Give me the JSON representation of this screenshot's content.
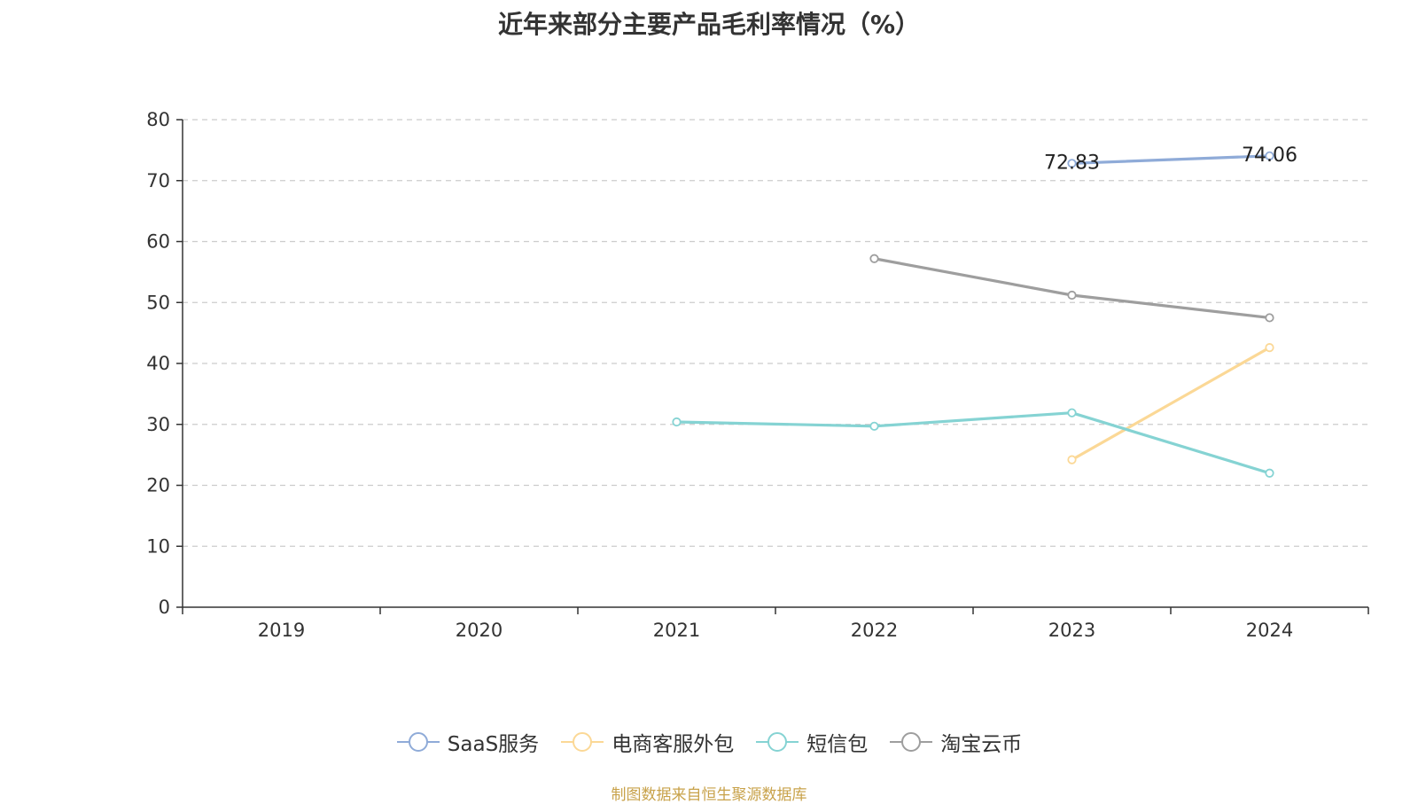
{
  "chart_data": {
    "type": "line",
    "title": "近年来部分主要产品毛利率情况（%）",
    "xlabel": "",
    "ylabel": "",
    "categories": [
      "2019",
      "2020",
      "2021",
      "2022",
      "2023",
      "2024"
    ],
    "ylim": [
      0,
      80
    ],
    "yticks": [
      0,
      10,
      20,
      30,
      40,
      50,
      60,
      70,
      80
    ],
    "grid": true,
    "legend_position": "bottom",
    "series": [
      {
        "name": "SaaS服务",
        "color": "#8fabd8",
        "values": [
          null,
          null,
          null,
          null,
          72.83,
          74.06
        ],
        "labels": [
          null,
          null,
          null,
          null,
          "72.83",
          "74.06"
        ]
      },
      {
        "name": "电商客服外包",
        "color": "#fbd896",
        "values": [
          null,
          null,
          null,
          null,
          24.2,
          42.6
        ],
        "labels": [
          null,
          null,
          null,
          null,
          null,
          null
        ]
      },
      {
        "name": "短信包",
        "color": "#85d3d3",
        "values": [
          null,
          null,
          30.4,
          29.7,
          31.9,
          22.0
        ],
        "labels": [
          null,
          null,
          null,
          null,
          null,
          null
        ]
      },
      {
        "name": "淘宝云币",
        "color": "#9e9e9e",
        "values": [
          null,
          null,
          null,
          57.2,
          51.2,
          47.5
        ],
        "labels": [
          null,
          null,
          null,
          null,
          null,
          null
        ]
      }
    ]
  },
  "source_note": "制图数据来自恒生聚源数据库"
}
